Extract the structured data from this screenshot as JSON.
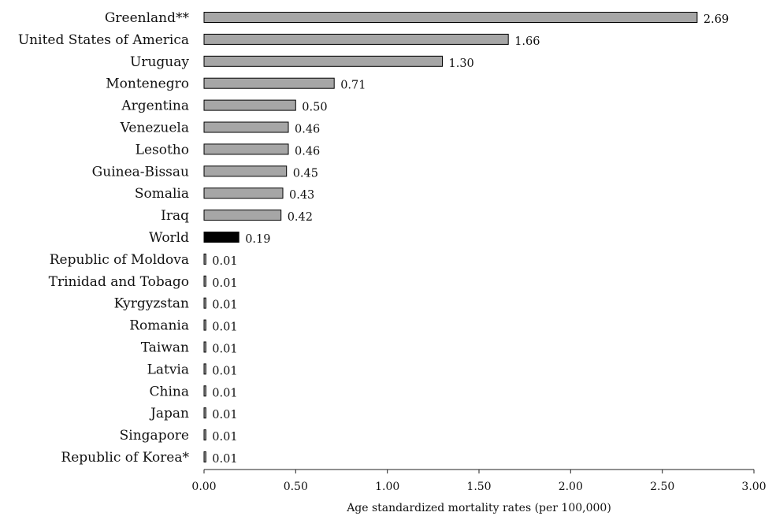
{
  "chart_data": {
    "type": "bar",
    "orientation": "horizontal",
    "categories": [
      "Greenland**",
      "United States of America",
      "Uruguay",
      "Montenegro",
      "Argentina",
      "Venezuela",
      "Lesotho",
      "Guinea-Bissau",
      "Somalia",
      "Iraq",
      "World",
      "Republic of Moldova",
      "Trinidad and Tobago",
      "Kyrgyzstan",
      "Romania",
      "Taiwan",
      "Latvia",
      "China",
      "Japan",
      "Singapore",
      "Republic of Korea*"
    ],
    "values": [
      2.69,
      1.66,
      1.3,
      0.71,
      0.5,
      0.46,
      0.46,
      0.45,
      0.43,
      0.42,
      0.19,
      0.01,
      0.01,
      0.01,
      0.01,
      0.01,
      0.01,
      0.01,
      0.01,
      0.01,
      0.01
    ],
    "value_labels": [
      "2.69",
      "1.66",
      "1.30",
      "0.71",
      "0.50",
      "0.46",
      "0.46",
      "0.45",
      "0.43",
      "0.42",
      "0.19",
      "0.01",
      "0.01",
      "0.01",
      "0.01",
      "0.01",
      "0.01",
      "0.01",
      "0.01",
      "0.01",
      "0.01"
    ],
    "highlight_category": "World",
    "xlabel": "Age standardized mortality rates (per 100,000)",
    "ylabel": "",
    "xlim": [
      0,
      3
    ],
    "xticks": [
      "0.00",
      "0.50",
      "1.00",
      "1.50",
      "2.00",
      "2.50",
      "3.00"
    ],
    "grid": false,
    "legend": "none"
  },
  "colors": {
    "bar_fill": "#a6a6a6",
    "highlight_fill": "#000000",
    "bar_stroke": "#000000"
  }
}
